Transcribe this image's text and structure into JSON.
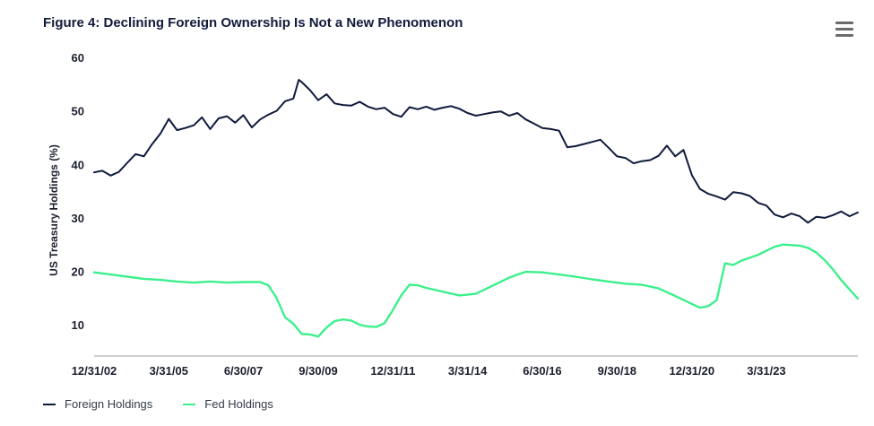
{
  "title": "Figure 4: Declining Foreign Ownership Is Not a New Phenomenon",
  "menu_icon": "hamburger-menu-icon",
  "chart_data": {
    "type": "line",
    "title": "Figure 4: Declining Foreign Ownership Is Not a New Phenomenon",
    "ylabel": "US Treasury Holdings (%)",
    "xlabel": "",
    "ylim": [
      5,
      60
    ],
    "yticks": [
      "10",
      "20",
      "30",
      "40",
      "50",
      "60"
    ],
    "xlim": [
      "2002-12-31",
      "2025-12-31"
    ],
    "xticks": [
      "12/31/02",
      "3/31/05",
      "6/30/07",
      "9/30/09",
      "12/31/11",
      "3/31/14",
      "6/30/16",
      "9/30/18",
      "12/31/20",
      "3/31/23"
    ],
    "legend_position": "bottom-left",
    "grid": false,
    "series": [
      {
        "name": "Foreign Holdings",
        "color": "#0f1a3c",
        "points": [
          [
            "2002-12-31",
            38.5
          ],
          [
            "2003-03-31",
            38.8
          ],
          [
            "2003-06-30",
            37.9
          ],
          [
            "2003-09-30",
            38.6
          ],
          [
            "2003-12-31",
            40.3
          ],
          [
            "2004-03-31",
            41.9
          ],
          [
            "2004-06-30",
            41.5
          ],
          [
            "2004-09-30",
            43.8
          ],
          [
            "2004-12-31",
            45.8
          ],
          [
            "2005-03-31",
            48.5
          ],
          [
            "2005-06-30",
            46.4
          ],
          [
            "2005-09-30",
            46.8
          ],
          [
            "2005-12-31",
            47.3
          ],
          [
            "2006-03-31",
            48.8
          ],
          [
            "2006-06-30",
            46.6
          ],
          [
            "2006-09-30",
            48.6
          ],
          [
            "2006-12-31",
            49.0
          ],
          [
            "2007-03-31",
            47.8
          ],
          [
            "2007-06-30",
            49.2
          ],
          [
            "2007-09-30",
            46.9
          ],
          [
            "2007-12-31",
            48.4
          ],
          [
            "2008-03-31",
            49.3
          ],
          [
            "2008-06-30",
            50.0
          ],
          [
            "2008-09-30",
            51.8
          ],
          [
            "2008-12-31",
            52.3
          ],
          [
            "2009-02-28",
            55.8
          ],
          [
            "2009-03-31",
            55.4
          ],
          [
            "2009-06-30",
            53.9
          ],
          [
            "2009-09-30",
            52.0
          ],
          [
            "2009-12-31",
            53.1
          ],
          [
            "2010-03-31",
            51.4
          ],
          [
            "2010-06-30",
            51.1
          ],
          [
            "2010-09-30",
            51.0
          ],
          [
            "2010-12-31",
            51.7
          ],
          [
            "2011-03-31",
            50.8
          ],
          [
            "2011-06-30",
            50.3
          ],
          [
            "2011-09-30",
            50.6
          ],
          [
            "2011-12-31",
            49.4
          ],
          [
            "2012-03-31",
            48.9
          ],
          [
            "2012-06-30",
            50.7
          ],
          [
            "2012-09-30",
            50.3
          ],
          [
            "2012-12-31",
            50.8
          ],
          [
            "2013-03-31",
            50.2
          ],
          [
            "2013-06-30",
            50.6
          ],
          [
            "2013-09-30",
            50.9
          ],
          [
            "2013-12-31",
            50.4
          ],
          [
            "2014-03-31",
            49.6
          ],
          [
            "2014-06-30",
            49.1
          ],
          [
            "2014-09-30",
            49.4
          ],
          [
            "2014-12-31",
            49.7
          ],
          [
            "2015-03-31",
            49.9
          ],
          [
            "2015-06-30",
            49.1
          ],
          [
            "2015-09-30",
            49.6
          ],
          [
            "2015-12-31",
            48.4
          ],
          [
            "2016-03-31",
            47.6
          ],
          [
            "2016-06-30",
            46.8
          ],
          [
            "2016-09-30",
            46.6
          ],
          [
            "2016-12-31",
            46.3
          ],
          [
            "2017-03-31",
            43.2
          ],
          [
            "2017-06-30",
            43.4
          ],
          [
            "2017-09-30",
            43.8
          ],
          [
            "2017-12-31",
            44.2
          ],
          [
            "2018-03-31",
            44.6
          ],
          [
            "2018-06-30",
            43.1
          ],
          [
            "2018-09-30",
            41.5
          ],
          [
            "2018-12-31",
            41.2
          ],
          [
            "2019-03-31",
            40.2
          ],
          [
            "2019-06-30",
            40.6
          ],
          [
            "2019-09-30",
            40.8
          ],
          [
            "2019-12-31",
            41.6
          ],
          [
            "2020-03-31",
            43.5
          ],
          [
            "2020-06-30",
            41.5
          ],
          [
            "2020-09-30",
            42.7
          ],
          [
            "2020-12-31",
            38.0
          ],
          [
            "2021-03-31",
            35.4
          ],
          [
            "2021-06-30",
            34.5
          ],
          [
            "2021-09-30",
            34.0
          ],
          [
            "2021-12-31",
            33.4
          ],
          [
            "2022-03-31",
            34.8
          ],
          [
            "2022-06-30",
            34.6
          ],
          [
            "2022-09-30",
            34.1
          ],
          [
            "2022-12-31",
            32.8
          ],
          [
            "2023-03-31",
            32.3
          ],
          [
            "2023-06-30",
            30.6
          ],
          [
            "2023-09-30",
            30.1
          ],
          [
            "2023-12-31",
            30.8
          ],
          [
            "2024-03-31",
            30.3
          ],
          [
            "2024-06-30",
            29.1
          ],
          [
            "2024-09-30",
            30.2
          ],
          [
            "2024-12-31",
            30.0
          ],
          [
            "2025-03-31",
            30.5
          ],
          [
            "2025-06-30",
            31.2
          ],
          [
            "2025-09-30",
            30.3
          ],
          [
            "2025-12-31",
            31.0
          ]
        ]
      },
      {
        "name": "Fed Holdings",
        "color": "#3df08c",
        "points": [
          [
            "2002-12-31",
            19.8
          ],
          [
            "2003-06-30",
            19.4
          ],
          [
            "2003-12-31",
            19.0
          ],
          [
            "2004-06-30",
            18.6
          ],
          [
            "2004-12-31",
            18.4
          ],
          [
            "2005-06-30",
            18.1
          ],
          [
            "2005-12-31",
            17.9
          ],
          [
            "2006-06-30",
            18.1
          ],
          [
            "2006-12-31",
            17.9
          ],
          [
            "2007-06-30",
            18.0
          ],
          [
            "2007-12-31",
            18.0
          ],
          [
            "2008-03-31",
            17.4
          ],
          [
            "2008-06-30",
            15.0
          ],
          [
            "2008-09-30",
            11.4
          ],
          [
            "2008-12-31",
            10.2
          ],
          [
            "2009-03-31",
            8.3
          ],
          [
            "2009-06-30",
            8.2
          ],
          [
            "2009-09-30",
            7.8
          ],
          [
            "2009-12-31",
            9.5
          ],
          [
            "2010-03-31",
            10.7
          ],
          [
            "2010-06-30",
            11.0
          ],
          [
            "2010-09-30",
            10.8
          ],
          [
            "2010-12-31",
            10.0
          ],
          [
            "2011-03-31",
            9.7
          ],
          [
            "2011-06-30",
            9.6
          ],
          [
            "2011-09-30",
            10.3
          ],
          [
            "2011-12-31",
            12.8
          ],
          [
            "2012-03-31",
            15.5
          ],
          [
            "2012-06-30",
            17.5
          ],
          [
            "2012-09-30",
            17.4
          ],
          [
            "2012-12-31",
            16.9
          ],
          [
            "2013-06-30",
            16.2
          ],
          [
            "2013-12-31",
            15.5
          ],
          [
            "2014-06-30",
            15.8
          ],
          [
            "2014-12-31",
            17.3
          ],
          [
            "2015-06-30",
            18.8
          ],
          [
            "2015-09-30",
            19.4
          ],
          [
            "2015-12-31",
            19.9
          ],
          [
            "2016-06-30",
            19.8
          ],
          [
            "2016-12-31",
            19.4
          ],
          [
            "2017-06-30",
            19.0
          ],
          [
            "2017-12-31",
            18.5
          ],
          [
            "2018-06-30",
            18.1
          ],
          [
            "2018-12-31",
            17.7
          ],
          [
            "2019-06-30",
            17.5
          ],
          [
            "2019-12-31",
            16.8
          ],
          [
            "2020-06-30",
            15.4
          ],
          [
            "2020-12-31",
            13.9
          ],
          [
            "2021-03-31",
            13.2
          ],
          [
            "2021-06-30",
            13.5
          ],
          [
            "2021-09-30",
            14.6
          ],
          [
            "2021-12-31",
            21.5
          ],
          [
            "2022-03-31",
            21.2
          ],
          [
            "2022-06-30",
            22.0
          ],
          [
            "2022-12-31",
            23.1
          ],
          [
            "2023-06-30",
            24.6
          ],
          [
            "2023-09-30",
            25.0
          ],
          [
            "2023-12-31",
            24.9
          ],
          [
            "2024-03-31",
            24.8
          ],
          [
            "2024-06-30",
            24.4
          ],
          [
            "2024-09-30",
            23.5
          ],
          [
            "2024-12-31",
            22.1
          ],
          [
            "2025-03-31",
            20.4
          ],
          [
            "2025-06-30",
            18.4
          ],
          [
            "2025-09-30",
            16.6
          ],
          [
            "2025-12-31",
            14.9
          ]
        ]
      }
    ]
  }
}
